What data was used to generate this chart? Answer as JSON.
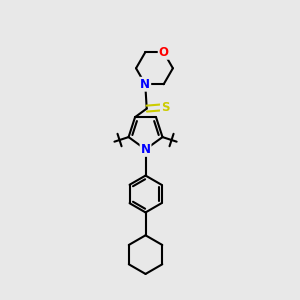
{
  "background_color": "#e8e8e8",
  "bond_color": "#000000",
  "N_color": "#0000ff",
  "O_color": "#ff0000",
  "S_color": "#cccc00",
  "line_width": 1.5,
  "figsize": [
    3.0,
    3.0
  ],
  "dpi": 100,
  "xlim": [
    0,
    10
  ],
  "ylim": [
    0,
    10
  ]
}
